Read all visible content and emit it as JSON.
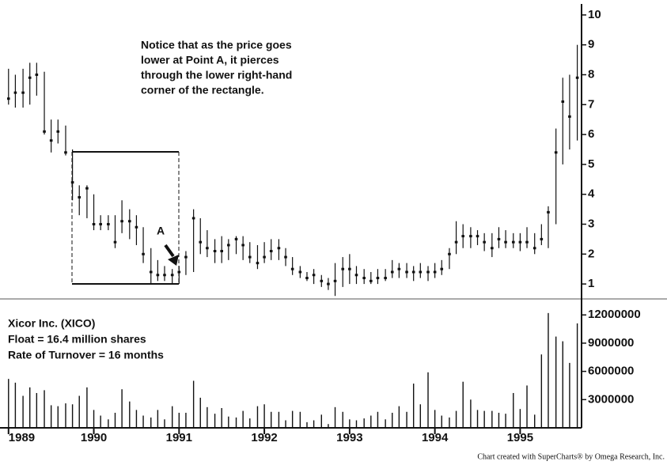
{
  "chart_data": {
    "type": "ohlc",
    "note": [
      "Notice that as the price goes",
      "lower at Point A, it pierces",
      "through the lower right-hand",
      "corner of the rectangle."
    ],
    "point_label": "A",
    "info": [
      "Xicor Inc. (XICO)",
      "Float = 16.4 million shares",
      "Rate of Turnover = 16 months"
    ],
    "credit": "Chart created with SuperCharts® by Omega Research, Inc.",
    "x": [
      1989,
      1989.08,
      1989.17,
      1989.25,
      1989.33,
      1989.42,
      1989.5,
      1989.58,
      1989.67,
      1989.75,
      1989.83,
      1989.92,
      1990,
      1990.08,
      1990.17,
      1990.25,
      1990.33,
      1990.42,
      1990.5,
      1990.58,
      1990.67,
      1990.75,
      1990.83,
      1990.92,
      1991,
      1991.08,
      1991.17,
      1991.25,
      1991.33,
      1991.42,
      1991.5,
      1991.58,
      1991.67,
      1991.75,
      1991.83,
      1991.92,
      1992,
      1992.08,
      1992.17,
      1992.25,
      1992.33,
      1992.42,
      1992.5,
      1992.58,
      1992.67,
      1992.75,
      1992.83,
      1992.92,
      1993,
      1993.08,
      1993.17,
      1993.25,
      1993.33,
      1993.42,
      1993.5,
      1993.58,
      1993.67,
      1993.75,
      1993.83,
      1993.92,
      1994,
      1994.08,
      1994.17,
      1994.25,
      1994.33,
      1994.42,
      1994.5,
      1994.58,
      1994.67,
      1994.75,
      1994.83,
      1994.92,
      1995,
      1995.08,
      1995.17,
      1995.25,
      1995.33,
      1995.42,
      1995.5,
      1995.58,
      1995.67
    ],
    "high": [
      8.2,
      8.0,
      8.2,
      8.4,
      8.4,
      8.1,
      6.5,
      6.5,
      6.3,
      5.5,
      4.3,
      4.3,
      4.0,
      3.3,
      3.3,
      3.3,
      3.8,
      3.5,
      3.3,
      2.9,
      2.2,
      1.8,
      1.6,
      1.5,
      1.6,
      2.1,
      3.5,
      3.2,
      2.8,
      2.5,
      2.6,
      2.5,
      2.6,
      2.6,
      2.4,
      2.3,
      2.4,
      2.5,
      2.5,
      2.2,
      1.9,
      1.6,
      1.4,
      1.5,
      1.3,
      1.2,
      1.7,
      1.9,
      2.0,
      1.6,
      1.5,
      1.4,
      1.5,
      1.5,
      1.8,
      1.7,
      1.7,
      1.6,
      1.7,
      1.6,
      1.7,
      1.8,
      2.2,
      3.1,
      3.0,
      2.9,
      2.8,
      2.7,
      2.7,
      2.9,
      2.8,
      2.7,
      2.7,
      2.9,
      2.7,
      3.0,
      3.6,
      6.2,
      7.9,
      8.0,
      9.0
    ],
    "low": [
      7.0,
      6.9,
      6.9,
      7.0,
      7.3,
      6.0,
      5.4,
      5.7,
      5.3,
      3.8,
      3.3,
      3.2,
      2.8,
      2.8,
      2.8,
      2.2,
      2.7,
      2.5,
      2.3,
      1.7,
      1.0,
      1.1,
      1.1,
      1.0,
      1.0,
      1.3,
      1.4,
      2.0,
      1.9,
      1.7,
      1.7,
      1.8,
      2.0,
      1.8,
      1.7,
      1.5,
      1.7,
      1.8,
      1.8,
      1.6,
      1.3,
      1.2,
      1.1,
      1.0,
      0.9,
      0.8,
      0.6,
      0.9,
      1.0,
      1.0,
      1.0,
      1.0,
      1.0,
      1.1,
      1.2,
      1.2,
      1.2,
      1.1,
      1.2,
      1.1,
      1.2,
      1.3,
      1.5,
      2.0,
      2.2,
      2.2,
      2.3,
      2.1,
      1.9,
      2.2,
      2.2,
      2.2,
      2.1,
      2.2,
      2.0,
      2.3,
      2.2,
      3.0,
      5.0,
      5.5,
      5.8
    ],
    "close": [
      7.2,
      7.4,
      7.4,
      7.9,
      8.0,
      6.1,
      5.8,
      6.1,
      5.4,
      4.4,
      3.9,
      4.2,
      3.0,
      3.0,
      3.0,
      2.4,
      3.1,
      3.1,
      2.9,
      2.0,
      1.4,
      1.3,
      1.3,
      1.3,
      1.4,
      1.9,
      3.2,
      2.4,
      2.2,
      2.1,
      2.1,
      2.3,
      2.5,
      2.3,
      1.9,
      1.7,
      1.9,
      2.1,
      2.2,
      1.9,
      1.5,
      1.4,
      1.2,
      1.3,
      1.1,
      1.0,
      1.1,
      1.5,
      1.5,
      1.3,
      1.2,
      1.1,
      1.2,
      1.2,
      1.4,
      1.5,
      1.4,
      1.4,
      1.4,
      1.4,
      1.4,
      1.5,
      2.0,
      2.4,
      2.6,
      2.6,
      2.6,
      2.4,
      2.2,
      2.5,
      2.4,
      2.4,
      2.4,
      2.4,
      2.2,
      2.5,
      3.4,
      5.4,
      7.1,
      6.6,
      7.9
    ],
    "volume": [
      5200000,
      4800000,
      3400000,
      4300000,
      3700000,
      4000000,
      2400000,
      2300000,
      2600000,
      2500000,
      3400000,
      4300000,
      1900000,
      1300000,
      900000,
      1600000,
      4100000,
      2800000,
      1900000,
      1300000,
      1100000,
      1900000,
      900000,
      2300000,
      1600000,
      1600000,
      5000000,
      3200000,
      2200000,
      1500000,
      2100000,
      1200000,
      1100000,
      1800000,
      1000000,
      2300000,
      2500000,
      1700000,
      1700000,
      800000,
      1800000,
      1700000,
      600000,
      800000,
      1400000,
      400000,
      2200000,
      1700000,
      900000,
      800000,
      1000000,
      1300000,
      1700000,
      900000,
      1600000,
      2300000,
      1700000,
      4700000,
      2500000,
      5900000,
      1900000,
      1300000,
      1100000,
      1800000,
      4900000,
      3000000,
      1900000,
      1800000,
      1800000,
      1600000,
      1500000,
      3700000,
      2000000,
      4500000,
      1400000,
      7800000,
      12200000,
      9700000,
      9200000,
      6900000,
      11100000
    ],
    "color": "#111111",
    "xlim": [
      1988.9,
      1995.72
    ],
    "xticks": [
      1989,
      1990,
      1991,
      1992,
      1993,
      1994,
      1995
    ],
    "ylim": [
      0.5,
      10.5
    ],
    "yticks": [
      1,
      2,
      3,
      4,
      5,
      6,
      7,
      8,
      9,
      10
    ],
    "y2lim": [
      0,
      13700000
    ],
    "y2ticks": [
      3000000,
      6000000,
      9000000,
      12000000
    ]
  }
}
